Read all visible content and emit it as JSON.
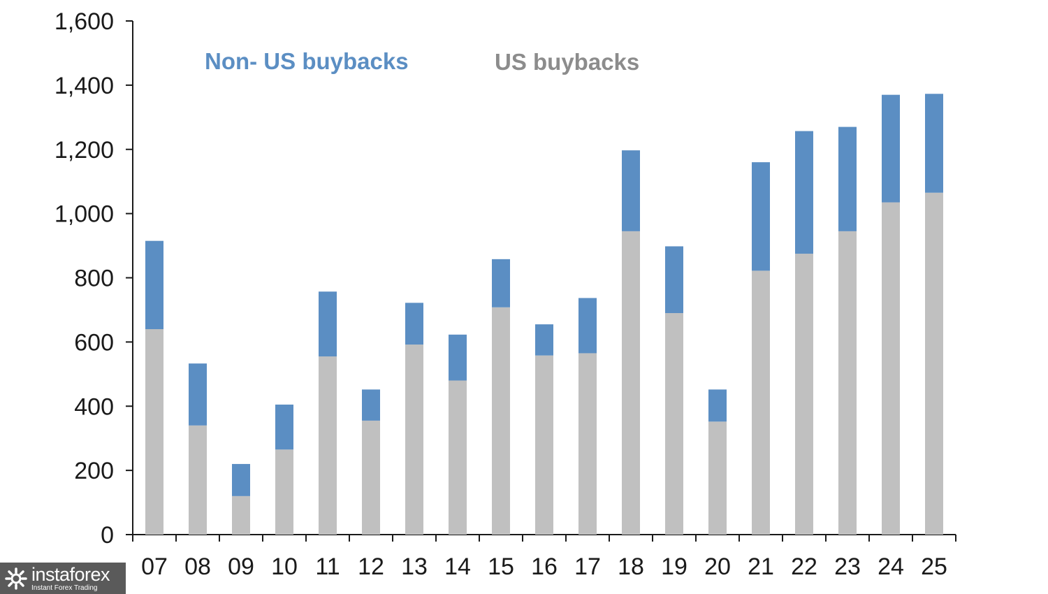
{
  "chart_data": {
    "type": "bar",
    "stacked": true,
    "title": "",
    "xlabel": "",
    "ylabel": "",
    "categories": [
      "07",
      "08",
      "09",
      "10",
      "11",
      "12",
      "13",
      "14",
      "15",
      "16",
      "17",
      "18",
      "19",
      "20",
      "21",
      "22",
      "23",
      "24",
      "25"
    ],
    "series": [
      {
        "name": "US buybacks",
        "color": "#c0c0c0",
        "values": [
          640,
          340,
          120,
          265,
          555,
          355,
          592,
          480,
          708,
          558,
          565,
          945,
          690,
          352,
          822,
          875,
          945,
          1035,
          1065
        ]
      },
      {
        "name": "Non- US buybacks",
        "color": "#5b8ec3",
        "values": [
          275,
          193,
          100,
          140,
          202,
          97,
          130,
          143,
          150,
          97,
          172,
          252,
          208,
          100,
          338,
          382,
          325,
          335,
          308
        ]
      }
    ],
    "ylim": [
      0,
      1600
    ],
    "yticks": [
      0,
      200,
      400,
      600,
      800,
      1000,
      1200,
      1400,
      1600
    ],
    "ytick_labels": [
      "0",
      "200",
      "400",
      "600",
      "800",
      "1,000",
      "1,200",
      "1,400",
      "1,600"
    ],
    "grid": false,
    "legend": {
      "placement": "top-left",
      "items": [
        {
          "label": "Non- US buybacks",
          "color": "#5b8ec3"
        },
        {
          "label": "US buybacks",
          "color": "#8c8c8c"
        }
      ]
    }
  },
  "watermark": {
    "brand": "instaforex",
    "tagline": "Instant Forex Trading",
    "icon": "gear-icon"
  }
}
